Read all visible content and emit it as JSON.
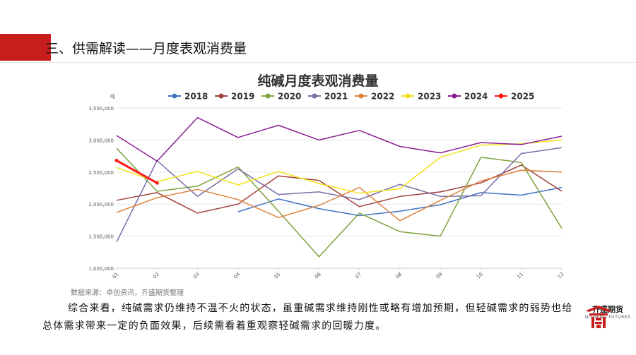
{
  "slide": {
    "title": "三、供需解读——月度表观消费量",
    "source_note": "数据来源：卓创资讯，齐盛期货整理",
    "paragraph": "综合来看，纯碱需求仍维持不温不火的状态，虽重碱需求维持刚性或略有增加预期，但轻碱需求的弱势也给总体需求带来一定的负面效果，后续需看着重观察轻碱需求的回暖力度。",
    "logo_cn": "齐盛期货",
    "logo_en": "QISHENG FUTURES",
    "accent_color": "#c81d1d"
  },
  "chart_data": {
    "type": "line",
    "title": "纯碱月度表观消费量",
    "ylabel": "吨",
    "xlabel": "",
    "categories": [
      "01",
      "02",
      "03",
      "04",
      "05",
      "06",
      "07",
      "08",
      "09",
      "10",
      "11",
      "12"
    ],
    "ylim": [
      1000000,
      3500000
    ],
    "yticks": [
      "1,000,000",
      "1,500,000",
      "2,000,000",
      "2,500,000",
      "3,000,000",
      "3,500,000"
    ],
    "grid": true,
    "legend": "top",
    "series": [
      {
        "name": "2018",
        "color": "#4472c4",
        "values": [
          null,
          null,
          null,
          1880000,
          2080000,
          1930000,
          1820000,
          1890000,
          1990000,
          2180000,
          2140000,
          2260000
        ]
      },
      {
        "name": "2019",
        "color": "#a0413c",
        "values": [
          2060000,
          2180000,
          1860000,
          2000000,
          2440000,
          2370000,
          1960000,
          2120000,
          2190000,
          2330000,
          2610000,
          2200000
        ]
      },
      {
        "name": "2020",
        "color": "#7ea23e",
        "values": [
          2870000,
          2200000,
          2280000,
          2580000,
          1890000,
          1180000,
          1860000,
          1570000,
          1500000,
          2730000,
          2650000,
          1620000
        ]
      },
      {
        "name": "2021",
        "color": "#7a6ba4",
        "values": [
          1410000,
          2680000,
          2120000,
          2550000,
          2150000,
          2190000,
          2070000,
          2310000,
          2120000,
          2130000,
          2790000,
          2880000
        ]
      },
      {
        "name": "2022",
        "color": "#e0823d",
        "values": [
          1870000,
          2100000,
          2230000,
          2070000,
          1790000,
          1980000,
          2260000,
          1740000,
          2060000,
          2360000,
          2530000,
          2500000
        ]
      },
      {
        "name": "2023",
        "color": "#f2e21a",
        "values": [
          2570000,
          2350000,
          2510000,
          2300000,
          2510000,
          2320000,
          2170000,
          2240000,
          2730000,
          2920000,
          2940000,
          3000000
        ]
      },
      {
        "name": "2024",
        "color": "#8a1e8f",
        "values": [
          3070000,
          2670000,
          3350000,
          3040000,
          3230000,
          3000000,
          3150000,
          2900000,
          2800000,
          2960000,
          2930000,
          3060000
        ]
      },
      {
        "name": "2025",
        "color": "#ff1a1a",
        "values": [
          2680000,
          2330000,
          null,
          null,
          null,
          null,
          null,
          null,
          null,
          null,
          null,
          null
        ]
      }
    ]
  }
}
